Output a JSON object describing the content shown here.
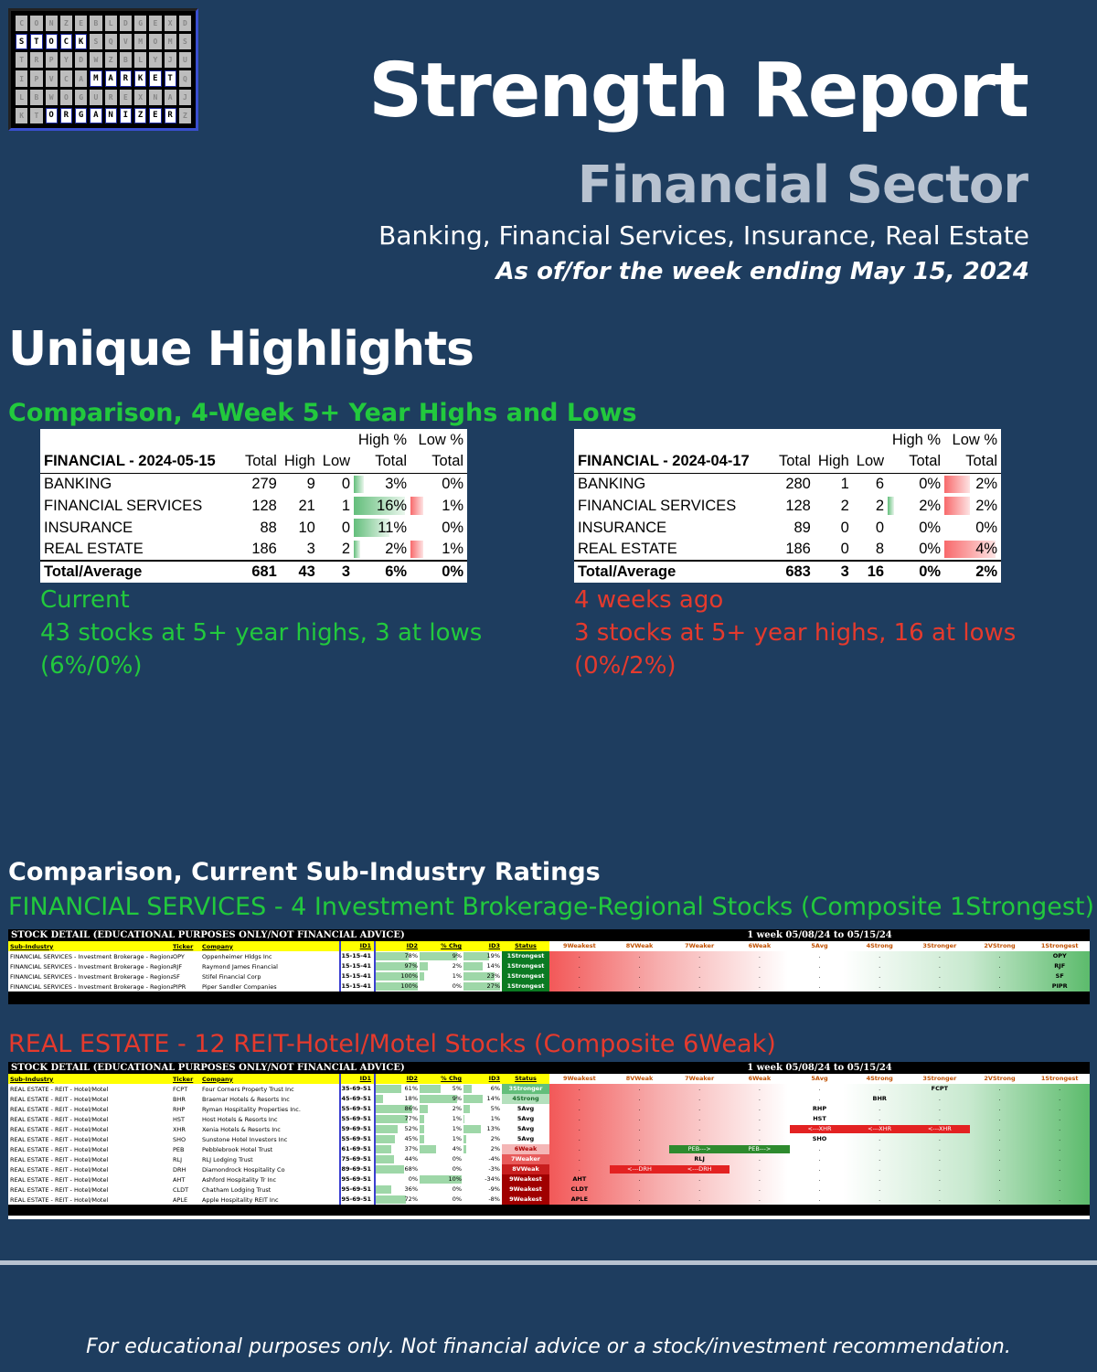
{
  "logo": {
    "letters": [
      "S",
      "T",
      "O",
      "C",
      "K",
      "M",
      "A",
      "R",
      "K",
      "E",
      "T",
      "O",
      "R",
      "G",
      "A",
      "N",
      "I",
      "Z",
      "E",
      "R"
    ]
  },
  "header": {
    "title": "Strength Report",
    "subtitle": "Financial Sector",
    "description": "Banking, Financial Services, Insurance, Real Estate",
    "as_of": "As of/for the week ending May 15, 2024"
  },
  "highlights": {
    "heading": "Unique Highlights",
    "comparison_heading": "Comparison, 4-Week 5+ Year Highs and Lows",
    "col_headers": {
      "high_pct_top": "High %",
      "low_pct_top": "Low %",
      "total": "Total",
      "high": "High",
      "low": "Low",
      "high_pct": "Total",
      "low_pct": "Total"
    },
    "current": {
      "title": "FINANCIAL - 2024-05-15",
      "rows": [
        {
          "name": "BANKING",
          "total": "279",
          "high": "9",
          "low": "0",
          "high_pct": "3%",
          "low_pct": "0%",
          "high_frac": 0.03,
          "low_frac": 0.0
        },
        {
          "name": "FINANCIAL SERVICES",
          "total": "128",
          "high": "21",
          "low": "1",
          "high_pct": "16%",
          "low_pct": "1%",
          "high_frac": 0.16,
          "low_frac": 0.01
        },
        {
          "name": "INSURANCE",
          "total": "88",
          "high": "10",
          "low": "0",
          "high_pct": "11%",
          "low_pct": "0%",
          "high_frac": 0.11,
          "low_frac": 0.0
        },
        {
          "name": "REAL ESTATE",
          "total": "186",
          "high": "3",
          "low": "2",
          "high_pct": "2%",
          "low_pct": "1%",
          "high_frac": 0.02,
          "low_frac": 0.01
        }
      ],
      "total_row": {
        "name": "Total/Average",
        "total": "681",
        "high": "43",
        "low": "3",
        "high_pct": "6%",
        "low_pct": "0%"
      },
      "caption_1": "Current",
      "caption_2": "43 stocks at 5+ year highs, 3 at lows",
      "caption_3": "(6%/0%)"
    },
    "previous": {
      "title": "FINANCIAL - 2024-04-17",
      "rows": [
        {
          "name": "BANKING",
          "total": "280",
          "high": "1",
          "low": "6",
          "high_pct": "0%",
          "low_pct": "2%",
          "high_frac": 0.0,
          "low_frac": 0.02
        },
        {
          "name": "FINANCIAL SERVICES",
          "total": "128",
          "high": "2",
          "low": "2",
          "high_pct": "2%",
          "low_pct": "2%",
          "high_frac": 0.02,
          "low_frac": 0.02
        },
        {
          "name": "INSURANCE",
          "total": "89",
          "high": "0",
          "low": "0",
          "high_pct": "0%",
          "low_pct": "0%",
          "high_frac": 0.0,
          "low_frac": 0.0
        },
        {
          "name": "REAL ESTATE",
          "total": "186",
          "high": "0",
          "low": "8",
          "high_pct": "0%",
          "low_pct": "4%",
          "high_frac": 0.0,
          "low_frac": 0.04
        }
      ],
      "total_row": {
        "name": "Total/Average",
        "total": "683",
        "high": "3",
        "low": "16",
        "high_pct": "0%",
        "low_pct": "2%"
      },
      "caption_1": "4 weeks ago",
      "caption_2": "3 stocks at 5+ year highs, 16 at lows",
      "caption_3": "(0%/2%)"
    }
  },
  "ratings": {
    "heading": "Comparison, Current Sub-Industry Ratings",
    "sheet_title": "STOCK DETAIL (EDUCATIONAL PURPOSES ONLY/NOT FINANCIAL ADVICE)",
    "week_label": "1 week 05/08/24 to 05/15/24",
    "col_headers": [
      "Sub-Industry",
      "Ticker",
      "Company",
      "ID1",
      "ID2",
      "% Chg",
      "ID3",
      "Status"
    ],
    "week_cols": [
      "9Weakest",
      "8VWeak",
      "7Weaker",
      "6Weak",
      "5Avg",
      "4Strong",
      "3Stronger",
      "2VStrong",
      "1Strongest"
    ],
    "fin_services": {
      "title": "FINANCIAL SERVICES - 4 Investment Brokerage-Regional Stocks (Composite 1Strongest)",
      "rows": [
        {
          "sub": "FINANCIAL SERVICES - Investment Brokerage - Regional",
          "ticker": "OPY",
          "company": "Oppenheimer Hldgs Inc",
          "id1": "15-15-41",
          "id2": "78%",
          "chg": "9%",
          "id3": "19%",
          "status": "1Strongest",
          "id2_frac": 0.78,
          "chg_frac": 0.09,
          "id3_frac": 0.19,
          "pos": 8
        },
        {
          "sub": "FINANCIAL SERVICES - Investment Brokerage - Regional",
          "ticker": "RJF",
          "company": "Raymond James Financial",
          "id1": "15-15-41",
          "id2": "97%",
          "chg": "2%",
          "id3": "14%",
          "status": "1Strongest",
          "id2_frac": 0.97,
          "chg_frac": 0.02,
          "id3_frac": 0.14,
          "pos": 8
        },
        {
          "sub": "FINANCIAL SERVICES - Investment Brokerage - Regional",
          "ticker": "SF",
          "company": "Stifel Financial Corp",
          "id1": "15-15-41",
          "id2": "100%",
          "chg": "1%",
          "id3": "23%",
          "status": "1Strongest",
          "id2_frac": 1.0,
          "chg_frac": 0.01,
          "id3_frac": 0.23,
          "pos": 8
        },
        {
          "sub": "FINANCIAL SERVICES - Investment Brokerage - Regional",
          "ticker": "PIPR",
          "company": "Piper Sandler Companies",
          "id1": "15-15-41",
          "id2": "100%",
          "chg": "0%",
          "id3": "27%",
          "status": "1Strongest",
          "id2_frac": 1.0,
          "chg_frac": 0.0,
          "id3_frac": 0.27,
          "pos": 8
        }
      ]
    },
    "real_estate": {
      "title": "REAL ESTATE - 12 REIT-Hotel/Motel Stocks (Composite 6Weak)",
      "rows": [
        {
          "sub": "REAL ESTATE - REIT - Hotel/Motel",
          "ticker": "FCPT",
          "company": "Four Corners Property Trust Inc",
          "id1": "35-69-51",
          "id2": "61%",
          "chg": "5%",
          "id3": "6%",
          "status": "3Stronger",
          "id2_frac": 0.61,
          "chg_frac": 0.05,
          "id3_frac": 0.06,
          "pos": 6
        },
        {
          "sub": "REAL ESTATE - REIT - Hotel/Motel",
          "ticker": "BHR",
          "company": "Braemar Hotels & Resorts Inc",
          "id1": "45-69-51",
          "id2": "18%",
          "chg": "9%",
          "id3": "14%",
          "status": "4Strong",
          "id2_frac": 0.18,
          "chg_frac": 0.09,
          "id3_frac": 0.14,
          "pos": 5
        },
        {
          "sub": "REAL ESTATE - REIT - Hotel/Motel",
          "ticker": "RHP",
          "company": "Ryman Hospitality Properties Inc.",
          "id1": "55-69-51",
          "id2": "86%",
          "chg": "2%",
          "id3": "5%",
          "status": "5Avg",
          "id2_frac": 0.86,
          "chg_frac": 0.02,
          "id3_frac": 0.05,
          "pos": 4
        },
        {
          "sub": "REAL ESTATE - REIT - Hotel/Motel",
          "ticker": "HST",
          "company": "Host Hotels & Resorts Inc",
          "id1": "55-69-51",
          "id2": "77%",
          "chg": "1%",
          "id3": "1%",
          "status": "5Avg",
          "id2_frac": 0.77,
          "chg_frac": 0.01,
          "id3_frac": 0.01,
          "pos": 4
        },
        {
          "sub": "REAL ESTATE - REIT - Hotel/Motel",
          "ticker": "XHR",
          "company": "Xenia Hotels & Resorts Inc",
          "id1": "59-69-51",
          "id2": "52%",
          "chg": "1%",
          "id3": "13%",
          "status": "5Avg",
          "id2_frac": 0.52,
          "chg_frac": 0.01,
          "id3_frac": 0.13,
          "pos": 4
        },
        {
          "sub": "REAL ESTATE - REIT - Hotel/Motel",
          "ticker": "SHO",
          "company": "Sunstone Hotel Investors Inc",
          "id1": "55-69-51",
          "id2": "45%",
          "chg": "1%",
          "id3": "2%",
          "status": "5Avg",
          "id2_frac": 0.45,
          "chg_frac": 0.01,
          "id3_frac": 0.02,
          "pos": 4
        },
        {
          "sub": "REAL ESTATE - REIT - Hotel/Motel",
          "ticker": "PEB",
          "company": "Pebblebrook Hotel Trust",
          "id1": "61-69-51",
          "id2": "37%",
          "chg": "4%",
          "id3": "2%",
          "status": "6Weak",
          "id2_frac": 0.37,
          "chg_frac": 0.04,
          "id3_frac": 0.02,
          "pos": 3
        },
        {
          "sub": "REAL ESTATE - REIT - Hotel/Motel",
          "ticker": "RLJ",
          "company": "RLJ Lodging Trust",
          "id1": "75-69-51",
          "id2": "44%",
          "chg": "0%",
          "id3": "-4%",
          "status": "7Weaker",
          "id2_frac": 0.44,
          "chg_frac": 0.0,
          "id3_frac": 0.0,
          "pos": 2
        },
        {
          "sub": "REAL ESTATE - REIT - Hotel/Motel",
          "ticker": "DRH",
          "company": "Diamondrock Hospitality Co",
          "id1": "89-69-51",
          "id2": "68%",
          "chg": "0%",
          "id3": "-3%",
          "status": "8VWeak",
          "id2_frac": 0.68,
          "chg_frac": 0.0,
          "id3_frac": 0.0,
          "pos": 1
        },
        {
          "sub": "REAL ESTATE - REIT - Hotel/Motel",
          "ticker": "AHT",
          "company": "Ashford Hospitality Tr Inc",
          "id1": "95-69-51",
          "id2": "0%",
          "chg": "10%",
          "id3": "-34%",
          "status": "9Weakest",
          "id2_frac": 0.0,
          "chg_frac": 0.1,
          "id3_frac": 0.0,
          "pos": 0
        },
        {
          "sub": "REAL ESTATE - REIT - Hotel/Motel",
          "ticker": "CLDT",
          "company": "Chatham Lodging Trust",
          "id1": "95-69-51",
          "id2": "36%",
          "chg": "0%",
          "id3": "-9%",
          "status": "9Weakest",
          "id2_frac": 0.36,
          "chg_frac": 0.0,
          "id3_frac": 0.0,
          "pos": 0
        },
        {
          "sub": "REAL ESTATE - REIT - Hotel/Motel",
          "ticker": "APLE",
          "company": "Apple Hospitality REIT Inc",
          "id1": "95-69-51",
          "id2": "72%",
          "chg": "0%",
          "id3": "-8%",
          "status": "9Weakest",
          "id2_frac": 0.72,
          "chg_frac": 0.0,
          "id3_frac": 0.0,
          "pos": 0
        }
      ],
      "arrows": [
        {
          "row": 4,
          "from": 4,
          "to": 6,
          "labels": [
            "<---XHR",
            "<---XHR",
            "<---XHR"
          ],
          "color": "#e32222"
        },
        {
          "row": 6,
          "from": 2,
          "to": 3,
          "labels": [
            "PEB--->",
            "PEB--->"
          ],
          "color": "#2e8a2e"
        },
        {
          "row": 8,
          "from": 1,
          "to": 2,
          "labels": [
            "<---DRH",
            "<---DRH"
          ],
          "color": "#e32222"
        }
      ]
    }
  },
  "footer": {
    "disclaimer": "For educational purposes only. Not financial advice or a stock/investment recommendation."
  }
}
